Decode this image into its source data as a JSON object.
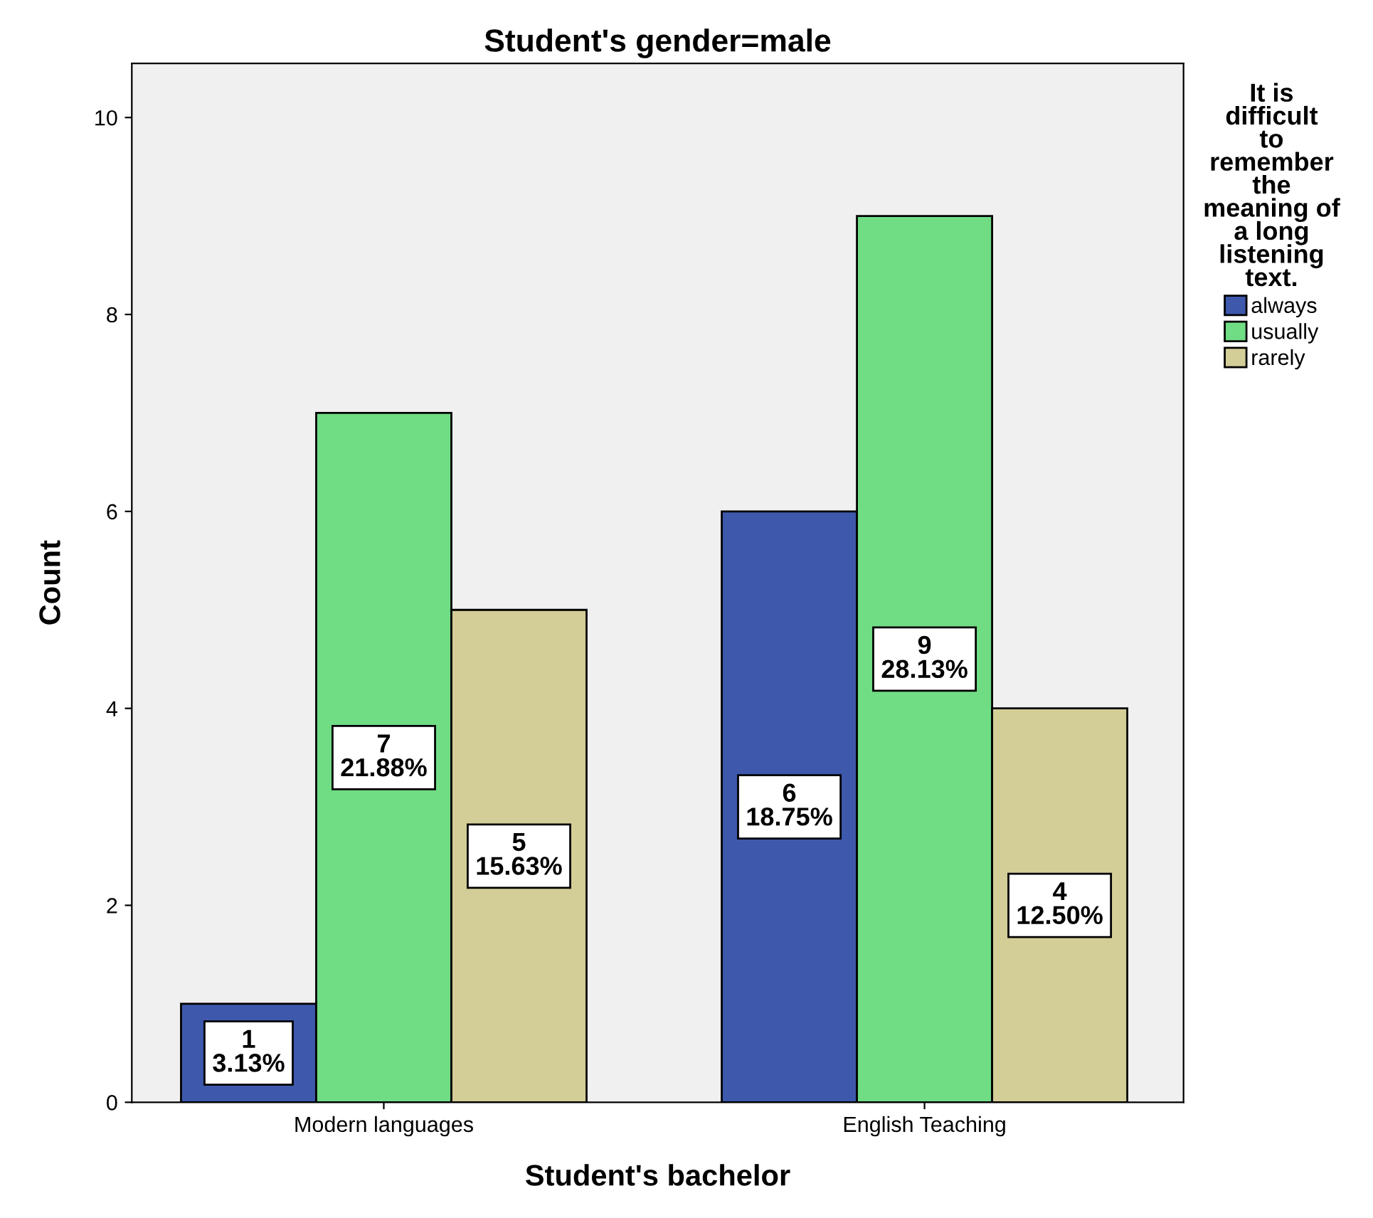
{
  "chart_data": {
    "type": "bar",
    "title": "Student's gender=male",
    "xlabel": "Student's bachelor",
    "ylabel": "Count",
    "legend_title": "It is difficult to remember the meaning of a long listening text.",
    "categories": [
      "Modern languages",
      "English Teaching"
    ],
    "series": [
      {
        "name": "always",
        "color": "#3e58ac",
        "values": [
          1,
          6
        ],
        "value_labels": [
          "1\n3.13%",
          "6\n18.75%"
        ]
      },
      {
        "name": "usually",
        "color": "#70dc84",
        "values": [
          7,
          9
        ],
        "value_labels": [
          "7\n21.88%",
          "9\n28.13%"
        ]
      },
      {
        "name": "rarely",
        "color": "#d3ce97",
        "values": [
          5,
          4
        ],
        "value_labels": [
          "5\n15.63%",
          "4\n12.50%"
        ]
      }
    ],
    "ylim": [
      0,
      10.55
    ],
    "yticks": [
      0,
      2,
      4,
      6,
      8,
      10
    ],
    "grid": false,
    "legend": "top right"
  }
}
